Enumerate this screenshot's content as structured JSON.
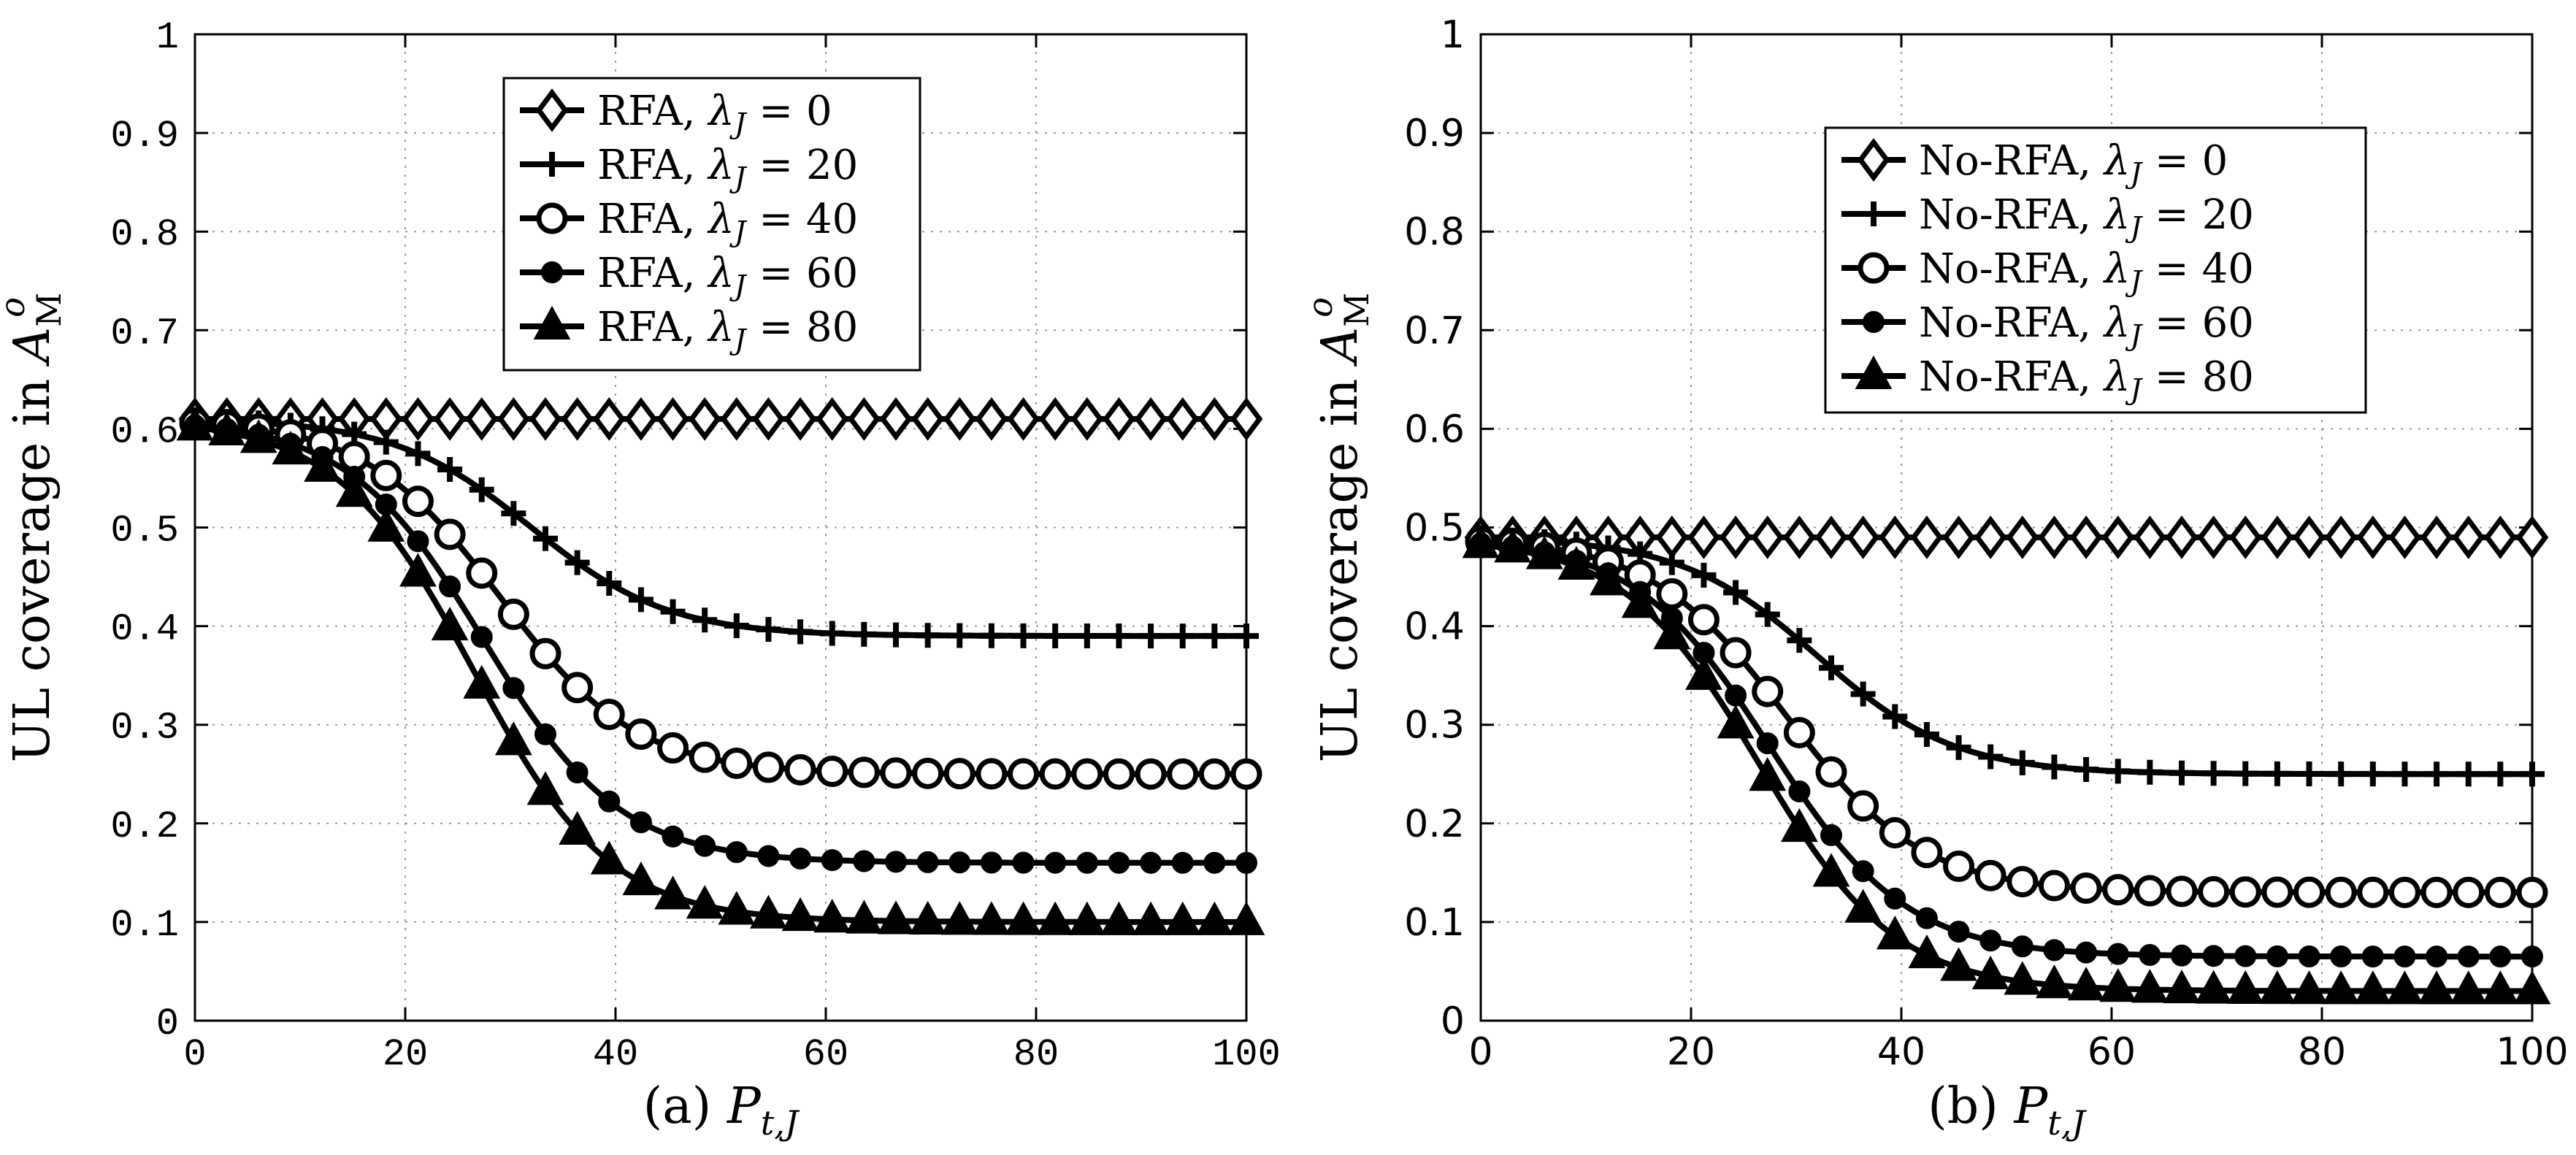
{
  "chart_data": [
    {
      "type": "line",
      "panel": "left",
      "title": "",
      "xlabel": "(a) P_{t,J}",
      "ylabel": "UL coverage in A_M^o",
      "xlim": [
        0,
        100
      ],
      "ylim": [
        0,
        1
      ],
      "grid": true,
      "legend_position": "top-center",
      "xticks": [
        "0",
        "20",
        "40",
        "60",
        "80",
        "100"
      ],
      "yticks": [
        "0",
        "0.1",
        "0.2",
        "0.3",
        "0.4",
        "0.5",
        "0.6",
        "0.7",
        "0.8",
        "0.9",
        "1"
      ],
      "series": [
        {
          "name": "RFA, λ_J = 0",
          "marker": "diamond",
          "start": 0.61,
          "end": 0.61,
          "mid": 30,
          "width": 6.5
        },
        {
          "name": "RFA, λ_J = 20",
          "marker": "plus",
          "start": 0.61,
          "end": 0.39,
          "mid": 32,
          "width": 6.5
        },
        {
          "name": "RFA, λ_J = 40",
          "marker": "circle",
          "start": 0.61,
          "end": 0.25,
          "mid": 29,
          "width": 6.5
        },
        {
          "name": "RFA, λ_J = 60",
          "marker": "dot",
          "start": 0.61,
          "end": 0.16,
          "mid": 27.5,
          "width": 6.5
        },
        {
          "name": "RFA, λ_J = 80",
          "marker": "triangle",
          "start": 0.61,
          "end": 0.1,
          "mid": 26.5,
          "width": 6.5
        }
      ]
    },
    {
      "type": "line",
      "panel": "right",
      "title": "",
      "xlabel": "(b) P_{t,J}",
      "ylabel": "UL coverage in A_M^o",
      "xlim": [
        0,
        100
      ],
      "ylim": [
        0,
        1
      ],
      "grid": true,
      "legend_position": "top-right",
      "xticks": [
        "0",
        "20",
        "40",
        "60",
        "80",
        "100"
      ],
      "yticks": [
        "0",
        "0.1",
        "0.2",
        "0.3",
        "0.4",
        "0.5",
        "0.6",
        "0.7",
        "0.8",
        "0.9",
        "1"
      ],
      "series": [
        {
          "name": "No-RFA, λ_J = 0",
          "marker": "diamond",
          "start": 0.49,
          "end": 0.49,
          "mid": 30,
          "width": 6.5
        },
        {
          "name": "No-RFA, λ_J = 20",
          "marker": "plus",
          "start": 0.49,
          "end": 0.25,
          "mid": 32,
          "width": 6.5
        },
        {
          "name": "No-RFA, λ_J = 40",
          "marker": "circle",
          "start": 0.49,
          "end": 0.13,
          "mid": 29,
          "width": 6.5
        },
        {
          "name": "No-RFA, λ_J = 60",
          "marker": "dot",
          "start": 0.49,
          "end": 0.065,
          "mid": 27.5,
          "width": 6.5
        },
        {
          "name": "No-RFA, λ_J = 80",
          "marker": "triangle",
          "start": 0.49,
          "end": 0.03,
          "mid": 26.5,
          "width": 6.5
        }
      ]
    }
  ]
}
